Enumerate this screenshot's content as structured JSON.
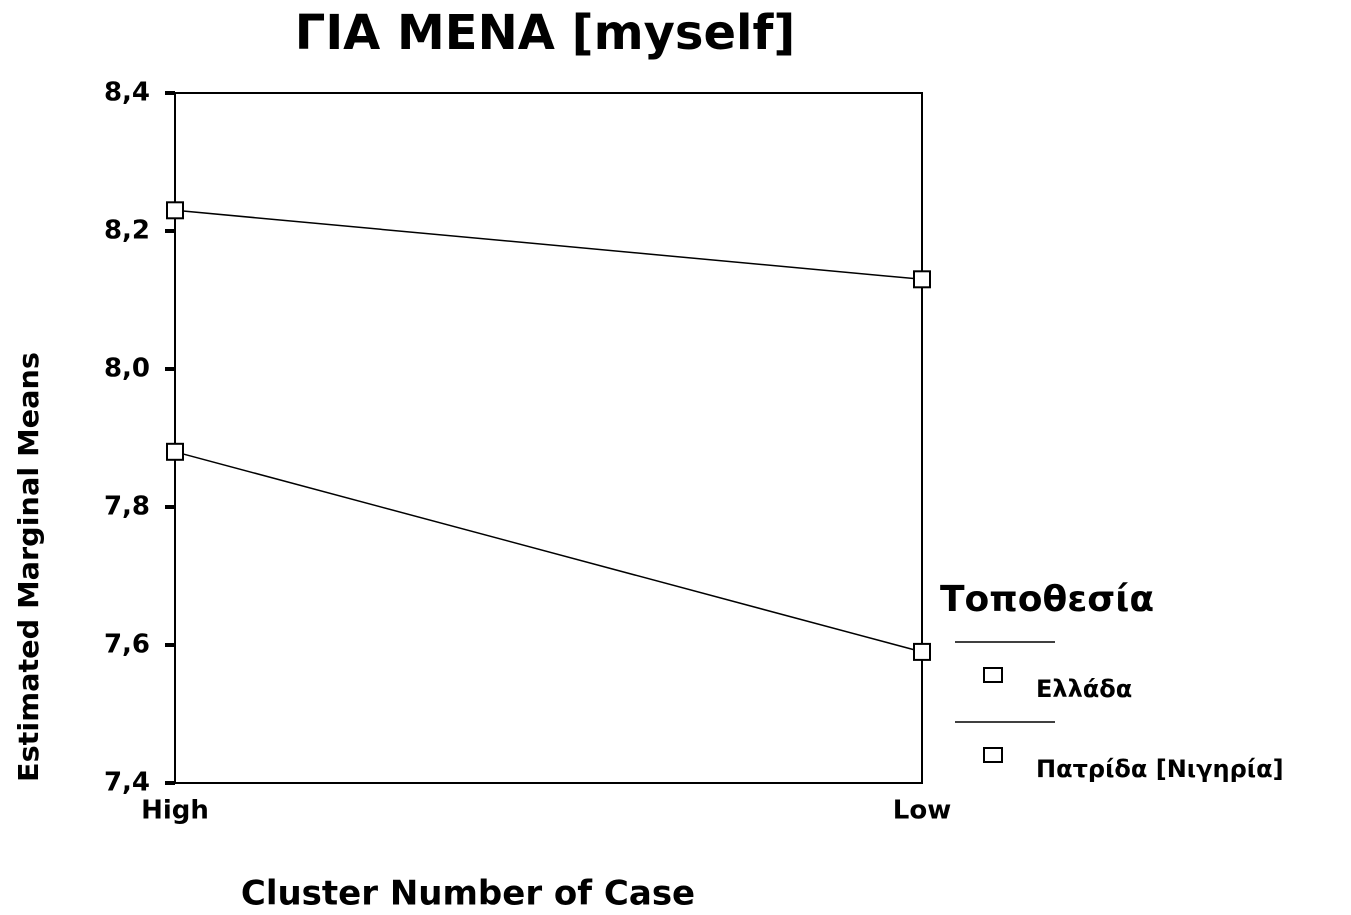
{
  "chart_data": {
    "type": "line",
    "title": "ΓΙΑ ΜΕΝΑ [myself]",
    "x_label": "Cluster Number of Case",
    "y_label": "Estimated Marginal Means",
    "categories": [
      "High",
      "Low"
    ],
    "series": [
      {
        "name": "Ελλάδα",
        "color": "#000000",
        "values": [
          8.23,
          8.13
        ]
      },
      {
        "name": "Πατρίδα [Νιγηρία]",
        "color": "#000000",
        "values": [
          7.88,
          7.59
        ]
      }
    ],
    "legend_title": "Τοποθεσία",
    "ylim": [
      7.4,
      8.4
    ],
    "yticks": [
      {
        "value": 7.4,
        "label": "7,4"
      },
      {
        "value": 7.6,
        "label": "7,6"
      },
      {
        "value": 7.8,
        "label": "7,8"
      },
      {
        "value": 8.0,
        "label": "8,0"
      },
      {
        "value": 8.2,
        "label": "8,2"
      },
      {
        "value": 8.4,
        "label": "8,4"
      }
    ],
    "legend_position": "right"
  }
}
